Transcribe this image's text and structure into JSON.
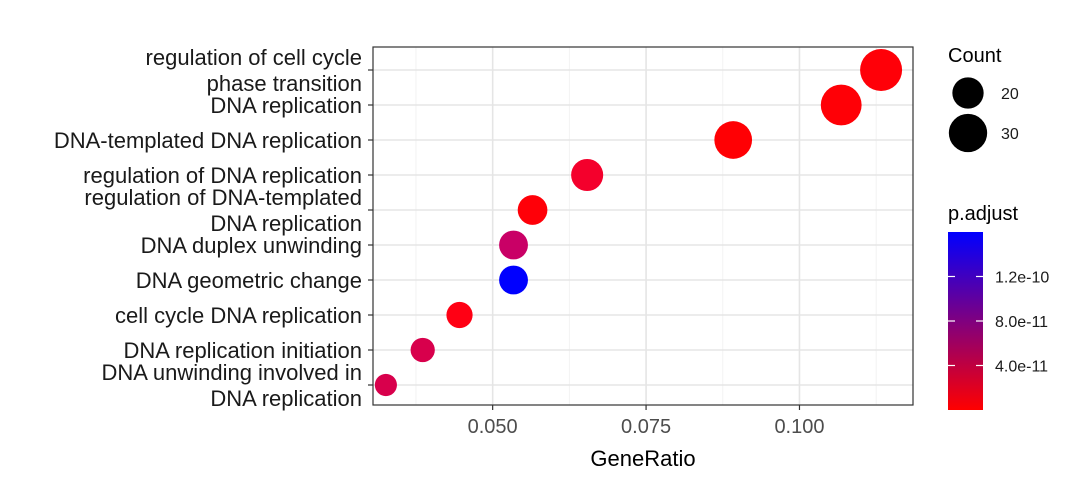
{
  "chart_data": {
    "type": "scatter",
    "title": "",
    "xlabel": "GeneRatio",
    "ylabel": "",
    "xlim": [
      0.0305,
      0.1185
    ],
    "x_ticks": [
      {
        "value": 0.05,
        "label": "0.050"
      },
      {
        "value": 0.075,
        "label": "0.075"
      },
      {
        "value": 0.1,
        "label": "0.100"
      }
    ],
    "grid": true,
    "legend_position": "right",
    "points": [
      {
        "term": [
          "regulation of cell cycle",
          "phase transition"
        ],
        "gene_ratio": 0.1133,
        "count": 36,
        "p_adjust": 1.8e-11,
        "color": "#ff0008"
      },
      {
        "term": [
          "DNA replication"
        ],
        "gene_ratio": 0.1068,
        "count": 34,
        "p_adjust": 1.2e-11,
        "color": "#ff0006"
      },
      {
        "term": [
          "DNA-templated DNA replication"
        ],
        "gene_ratio": 0.0892,
        "count": 29,
        "p_adjust": 8e-12,
        "color": "#ff0004"
      },
      {
        "term": [
          "regulation of DNA replication"
        ],
        "gene_ratio": 0.0654,
        "count": 21,
        "p_adjust": 2.2e-11,
        "color": "#f4002c"
      },
      {
        "term": [
          "regulation of DNA-templated",
          "DNA replication"
        ],
        "gene_ratio": 0.0565,
        "count": 18,
        "p_adjust": 1.5e-11,
        "color": "#ff0008"
      },
      {
        "term": [
          "DNA duplex unwinding"
        ],
        "gene_ratio": 0.0534,
        "count": 17,
        "p_adjust": 9e-11,
        "color": "#c90066"
      },
      {
        "term": [
          "DNA geometric change"
        ],
        "gene_ratio": 0.0534,
        "count": 17,
        "p_adjust": 1.55e-10,
        "color": "#0000ff"
      },
      {
        "term": [
          "cell cycle DNA replication"
        ],
        "gene_ratio": 0.0446,
        "count": 14,
        "p_adjust": 1.2e-11,
        "color": "#ff0014"
      },
      {
        "term": [
          "DNA replication initiation"
        ],
        "gene_ratio": 0.0386,
        "count": 12,
        "p_adjust": 6.5e-11,
        "color": "#d8004c"
      },
      {
        "term": [
          "DNA unwinding involved in",
          "DNA replication"
        ],
        "gene_ratio": 0.0326,
        "count": 10,
        "p_adjust": 6.5e-11,
        "color": "#d8004c"
      }
    ],
    "legend_count": {
      "title": "Count",
      "entries": [
        {
          "value": 20,
          "label": "20"
        },
        {
          "value": 30,
          "label": "30"
        }
      ]
    },
    "legend_padjust": {
      "title": "p.adjust",
      "range": [
        0.0,
        1.6e-10
      ],
      "low_color": "#ff0000",
      "high_color": "#0000ff",
      "ticks": [
        {
          "value": 4e-11,
          "label": "4.0e-11"
        },
        {
          "value": 8e-11,
          "label": "8.0e-11"
        },
        {
          "value": 1.2e-10,
          "label": "1.2e-10"
        }
      ]
    }
  }
}
